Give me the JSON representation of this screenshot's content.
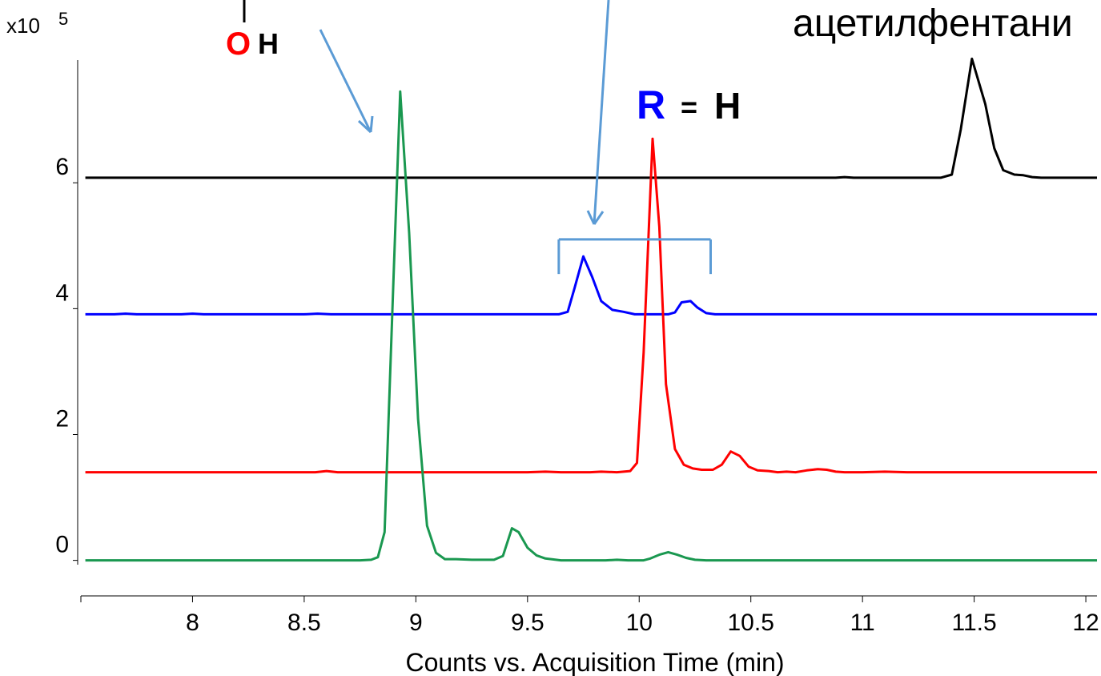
{
  "chart_data": {
    "type": "line",
    "xlabel": "Counts vs. Acquisition Time (min)",
    "ylabel_multiplier": "x10",
    "ylabel_exponent": "5",
    "xlim": [
      7.5,
      12.05
    ],
    "ylim": [
      -0.45,
      7.95
    ],
    "x_ticks": [
      8,
      8.5,
      9,
      9.5,
      10,
      10.5,
      11,
      11.5,
      12
    ],
    "x_tick_labels": [
      "8",
      "8.5",
      "9",
      "9.5",
      "10",
      "10.5",
      "11",
      "11.5",
      "12"
    ],
    "y_ticks": [
      0,
      2,
      4,
      6
    ],
    "y_tick_labels": [
      "0",
      "2",
      "4",
      "6"
    ],
    "grid": false,
    "series": [
      {
        "color": "#000000",
        "points": [
          [
            7.52,
            6.08
          ],
          [
            8.5,
            6.08
          ],
          [
            9,
            6.08
          ],
          [
            9.5,
            6.08
          ],
          [
            10,
            6.08
          ],
          [
            10.5,
            6.08
          ],
          [
            10.88,
            6.08
          ],
          [
            10.92,
            6.09
          ],
          [
            10.96,
            6.08
          ],
          [
            11.35,
            6.08
          ],
          [
            11.4,
            6.13
          ],
          [
            11.44,
            6.85
          ],
          [
            11.49,
            7.97
          ],
          [
            11.55,
            7.25
          ],
          [
            11.59,
            6.55
          ],
          [
            11.63,
            6.2
          ],
          [
            11.68,
            6.13
          ],
          [
            11.72,
            6.12
          ],
          [
            11.76,
            6.09
          ],
          [
            11.8,
            6.08
          ],
          [
            12.05,
            6.08
          ]
        ]
      },
      {
        "color": "#0000ff",
        "points": [
          [
            7.52,
            3.91
          ],
          [
            7.65,
            3.91
          ],
          [
            7.7,
            3.92
          ],
          [
            7.75,
            3.91
          ],
          [
            7.85,
            3.91
          ],
          [
            7.95,
            3.91
          ],
          [
            8,
            3.92
          ],
          [
            8.05,
            3.91
          ],
          [
            8.5,
            3.91
          ],
          [
            8.56,
            3.92
          ],
          [
            8.62,
            3.91
          ],
          [
            9.6,
            3.91
          ],
          [
            9.64,
            3.91
          ],
          [
            9.68,
            3.95
          ],
          [
            9.71,
            4.32
          ],
          [
            9.75,
            4.83
          ],
          [
            9.79,
            4.5
          ],
          [
            9.83,
            4.12
          ],
          [
            9.88,
            3.98
          ],
          [
            9.93,
            3.95
          ],
          [
            9.98,
            3.91
          ],
          [
            10.13,
            3.91
          ],
          [
            10.16,
            3.94
          ],
          [
            10.19,
            4.1
          ],
          [
            10.23,
            4.12
          ],
          [
            10.26,
            4.02
          ],
          [
            10.3,
            3.93
          ],
          [
            10.34,
            3.91
          ],
          [
            12.05,
            3.91
          ]
        ]
      },
      {
        "color": "#ff0000",
        "points": [
          [
            7.52,
            1.4
          ],
          [
            8.55,
            1.4
          ],
          [
            8.6,
            1.42
          ],
          [
            8.65,
            1.4
          ],
          [
            9.5,
            1.4
          ],
          [
            9.58,
            1.41
          ],
          [
            9.65,
            1.4
          ],
          [
            9.78,
            1.4
          ],
          [
            9.83,
            1.41
          ],
          [
            9.9,
            1.4
          ],
          [
            9.96,
            1.42
          ],
          [
            9.99,
            1.55
          ],
          [
            10.02,
            3.3
          ],
          [
            10.06,
            6.7
          ],
          [
            10.09,
            5.3
          ],
          [
            10.12,
            2.8
          ],
          [
            10.16,
            1.77
          ],
          [
            10.2,
            1.52
          ],
          [
            10.24,
            1.46
          ],
          [
            10.28,
            1.44
          ],
          [
            10.33,
            1.44
          ],
          [
            10.37,
            1.52
          ],
          [
            10.41,
            1.73
          ],
          [
            10.45,
            1.66
          ],
          [
            10.49,
            1.49
          ],
          [
            10.53,
            1.43
          ],
          [
            10.58,
            1.42
          ],
          [
            10.62,
            1.4
          ],
          [
            10.66,
            1.41
          ],
          [
            10.7,
            1.4
          ],
          [
            10.75,
            1.43
          ],
          [
            10.8,
            1.45
          ],
          [
            10.84,
            1.44
          ],
          [
            10.88,
            1.41
          ],
          [
            10.92,
            1.4
          ],
          [
            11,
            1.4
          ],
          [
            11.1,
            1.41
          ],
          [
            11.2,
            1.4
          ],
          [
            12.05,
            1.4
          ]
        ]
      },
      {
        "color": "#1a9850",
        "points": [
          [
            7.52,
            0.0
          ],
          [
            8.75,
            0.0
          ],
          [
            8.8,
            0.01
          ],
          [
            8.83,
            0.05
          ],
          [
            8.86,
            0.45
          ],
          [
            8.9,
            4.5
          ],
          [
            8.93,
            7.45
          ],
          [
            8.97,
            5.2
          ],
          [
            9.01,
            2.25
          ],
          [
            9.05,
            0.55
          ],
          [
            9.09,
            0.12
          ],
          [
            9.13,
            0.02
          ],
          [
            9.18,
            0.02
          ],
          [
            9.25,
            0.01
          ],
          [
            9.35,
            0.01
          ],
          [
            9.39,
            0.07
          ],
          [
            9.43,
            0.51
          ],
          [
            9.46,
            0.45
          ],
          [
            9.5,
            0.2
          ],
          [
            9.54,
            0.08
          ],
          [
            9.58,
            0.03
          ],
          [
            9.65,
            0.0
          ],
          [
            9.75,
            0.0
          ],
          [
            9.85,
            0.0
          ],
          [
            9.9,
            0.01
          ],
          [
            9.95,
            0.0
          ],
          [
            10.02,
            0.0
          ],
          [
            10.05,
            0.03
          ],
          [
            10.09,
            0.09
          ],
          [
            10.13,
            0.13
          ],
          [
            10.17,
            0.09
          ],
          [
            10.21,
            0.04
          ],
          [
            10.25,
            0.01
          ],
          [
            10.3,
            0.0
          ],
          [
            12.05,
            0.0
          ]
        ]
      }
    ],
    "bracket": {
      "x1": 9.64,
      "x2": 10.32,
      "y_top": 5.1,
      "y_bottom": 4.55,
      "color": "#5b9bd5"
    }
  },
  "annotations": {
    "oh_o": "O",
    "oh_h": "H",
    "r_letter": "R",
    "r_eq": "=",
    "r_h": "H",
    "top_right": "ацетилфентани",
    "arrow_color": "#5b9bd5",
    "red_color": "#ff0000",
    "blue_color": "#0000ff"
  }
}
